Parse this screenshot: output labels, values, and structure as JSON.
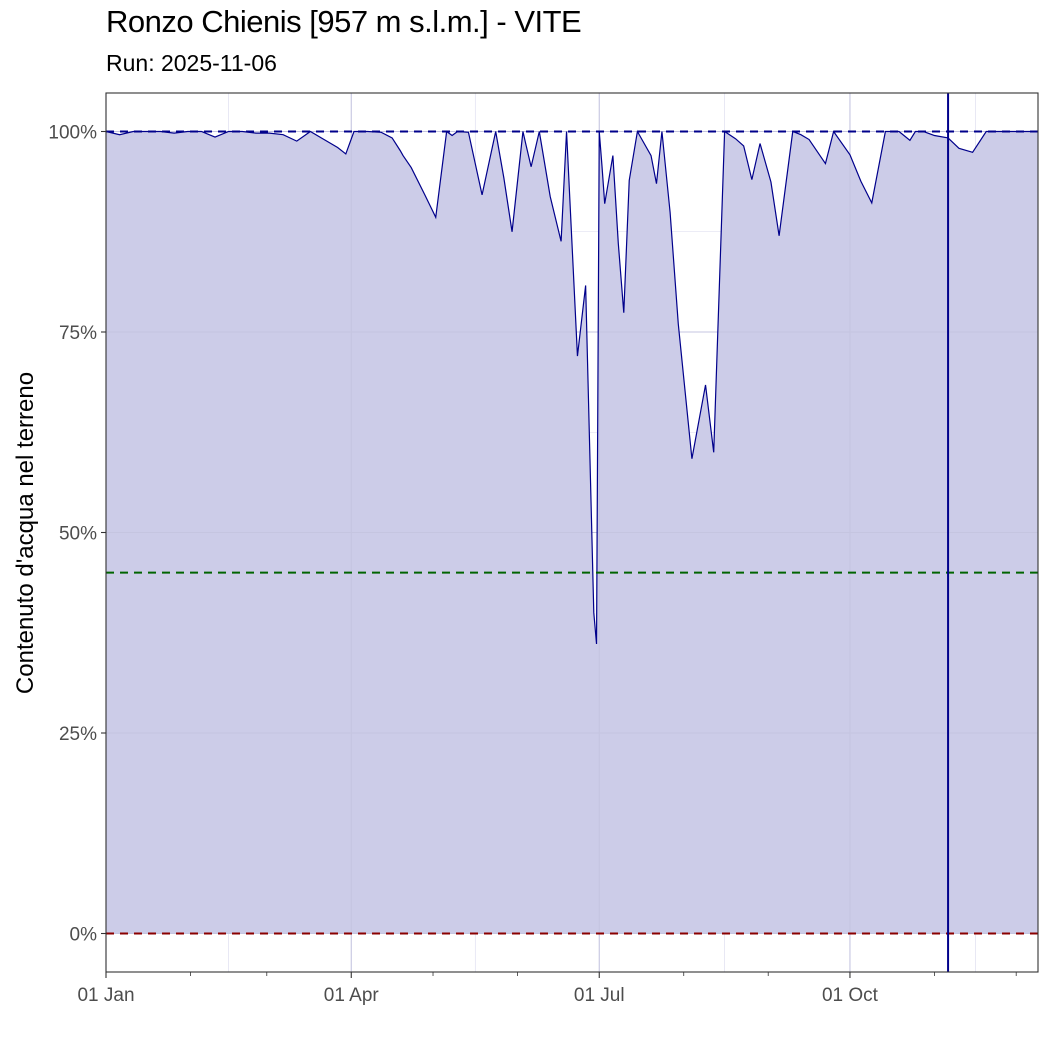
{
  "chart_data": {
    "type": "area",
    "title": "Ronzo Chienis [957 m s.l.m.] - VITE",
    "subtitle": "Run: 2025-11-06",
    "xlabel": "",
    "ylabel": "Contenuto d'acqua nel terreno",
    "x_ticks": [
      {
        "label": "01 Jan",
        "date": "2025-01-01"
      },
      {
        "label": "01 Apr",
        "date": "2025-04-01"
      },
      {
        "label": "01 Jul",
        "date": "2025-07-01"
      },
      {
        "label": "01 Oct",
        "date": "2025-10-01"
      }
    ],
    "y_ticks": [
      {
        "label": "0%",
        "value": 0
      },
      {
        "label": "25%",
        "value": 25
      },
      {
        "label": "50%",
        "value": 50
      },
      {
        "label": "75%",
        "value": 75
      },
      {
        "label": "100%",
        "value": 100
      }
    ],
    "xlim": [
      "2025-01-01",
      "2025-12-09"
    ],
    "ylim": [
      -4.8,
      104.8
    ],
    "grid": true,
    "reference_lines": [
      {
        "axis": "y",
        "value": 100,
        "style": "dashed",
        "color": "#00008b"
      },
      {
        "axis": "y",
        "value": 45,
        "style": "dashed",
        "color": "#006400"
      },
      {
        "axis": "y",
        "value": 0,
        "style": "dashed",
        "color": "#8b0000"
      },
      {
        "axis": "x",
        "value": "2025-11-06",
        "style": "solid",
        "color": "#00008b"
      }
    ],
    "colors": {
      "line": "#00008b",
      "fill": "#cccce8",
      "grid_major": "#c5c5e0",
      "grid_minor": "#d8d8ee"
    },
    "series": [
      {
        "x": [
          "2025-01-01",
          "2025-01-06",
          "2025-01-11",
          "2025-01-16",
          "2025-01-21",
          "2025-01-26",
          "2025-01-31",
          "2025-02-05",
          "2025-02-10",
          "2025-02-15",
          "2025-02-20",
          "2025-02-25",
          "2025-03-02",
          "2025-03-07",
          "2025-03-12",
          "2025-03-17",
          "2025-03-22",
          "2025-03-27",
          "2025-03-30",
          "2025-04-02",
          "2025-04-07",
          "2025-04-12",
          "2025-04-16",
          "2025-04-19",
          "2025-04-20",
          "2025-04-23",
          "2025-04-28",
          "2025-05-02",
          "2025-05-06",
          "2025-05-08",
          "2025-05-10",
          "2025-05-14",
          "2025-05-19",
          "2025-05-24",
          "2025-05-27",
          "2025-05-30",
          "2025-06-03",
          "2025-06-04",
          "2025-06-06",
          "2025-06-09",
          "2025-06-13",
          "2025-06-17",
          "2025-06-19",
          "2025-06-23",
          "2025-06-26",
          "2025-06-29",
          "2025-06-30",
          "2025-07-01",
          "2025-07-02",
          "2025-07-03",
          "2025-07-06",
          "2025-07-08",
          "2025-07-10",
          "2025-07-12",
          "2025-07-15",
          "2025-07-20",
          "2025-07-22",
          "2025-07-24",
          "2025-07-27",
          "2025-07-30",
          "2025-08-04",
          "2025-08-09",
          "2025-08-12",
          "2025-08-16",
          "2025-08-20",
          "2025-08-23",
          "2025-08-26",
          "2025-08-29",
          "2025-09-02",
          "2025-09-05",
          "2025-09-10",
          "2025-09-13",
          "2025-09-16",
          "2025-09-22",
          "2025-09-25",
          "2025-10-01",
          "2025-10-05",
          "2025-10-09",
          "2025-10-14",
          "2025-10-19",
          "2025-10-23",
          "2025-10-25",
          "2025-10-28",
          "2025-11-01",
          "2025-11-06",
          "2025-11-10",
          "2025-11-15",
          "2025-11-20",
          "2025-11-25",
          "2025-11-30",
          "2025-12-05",
          "2025-12-09"
        ],
        "y": [
          100,
          99.6,
          100,
          100,
          100,
          99.8,
          100,
          100,
          99.3,
          100,
          100,
          99.8,
          99.8,
          99.6,
          98.8,
          100,
          99,
          98,
          97.2,
          100,
          100,
          99.9,
          99.2,
          97.6,
          97.0,
          95.5,
          92.1,
          89.3,
          100,
          99.5,
          100,
          99.9,
          92.1,
          100,
          94.2,
          87.5,
          100,
          98.5,
          95.6,
          100,
          91.9,
          86.3,
          100,
          72.0,
          80.8,
          40.0,
          36.1,
          100,
          95.7,
          91.0,
          97.0,
          86.0,
          77.4,
          93.9,
          100,
          97.0,
          93.5,
          100,
          89.9,
          76.0,
          59.2,
          68.4,
          60.0,
          100,
          99.1,
          98.2,
          94.0,
          98.5,
          93.7,
          87.0,
          100,
          99.6,
          99.0,
          96.0,
          100,
          97.1,
          93.8,
          91.1,
          100,
          100,
          98.9,
          100,
          100,
          99.5,
          99.2,
          97.9,
          97.4,
          100,
          100,
          100,
          100,
          100
        ]
      }
    ]
  }
}
